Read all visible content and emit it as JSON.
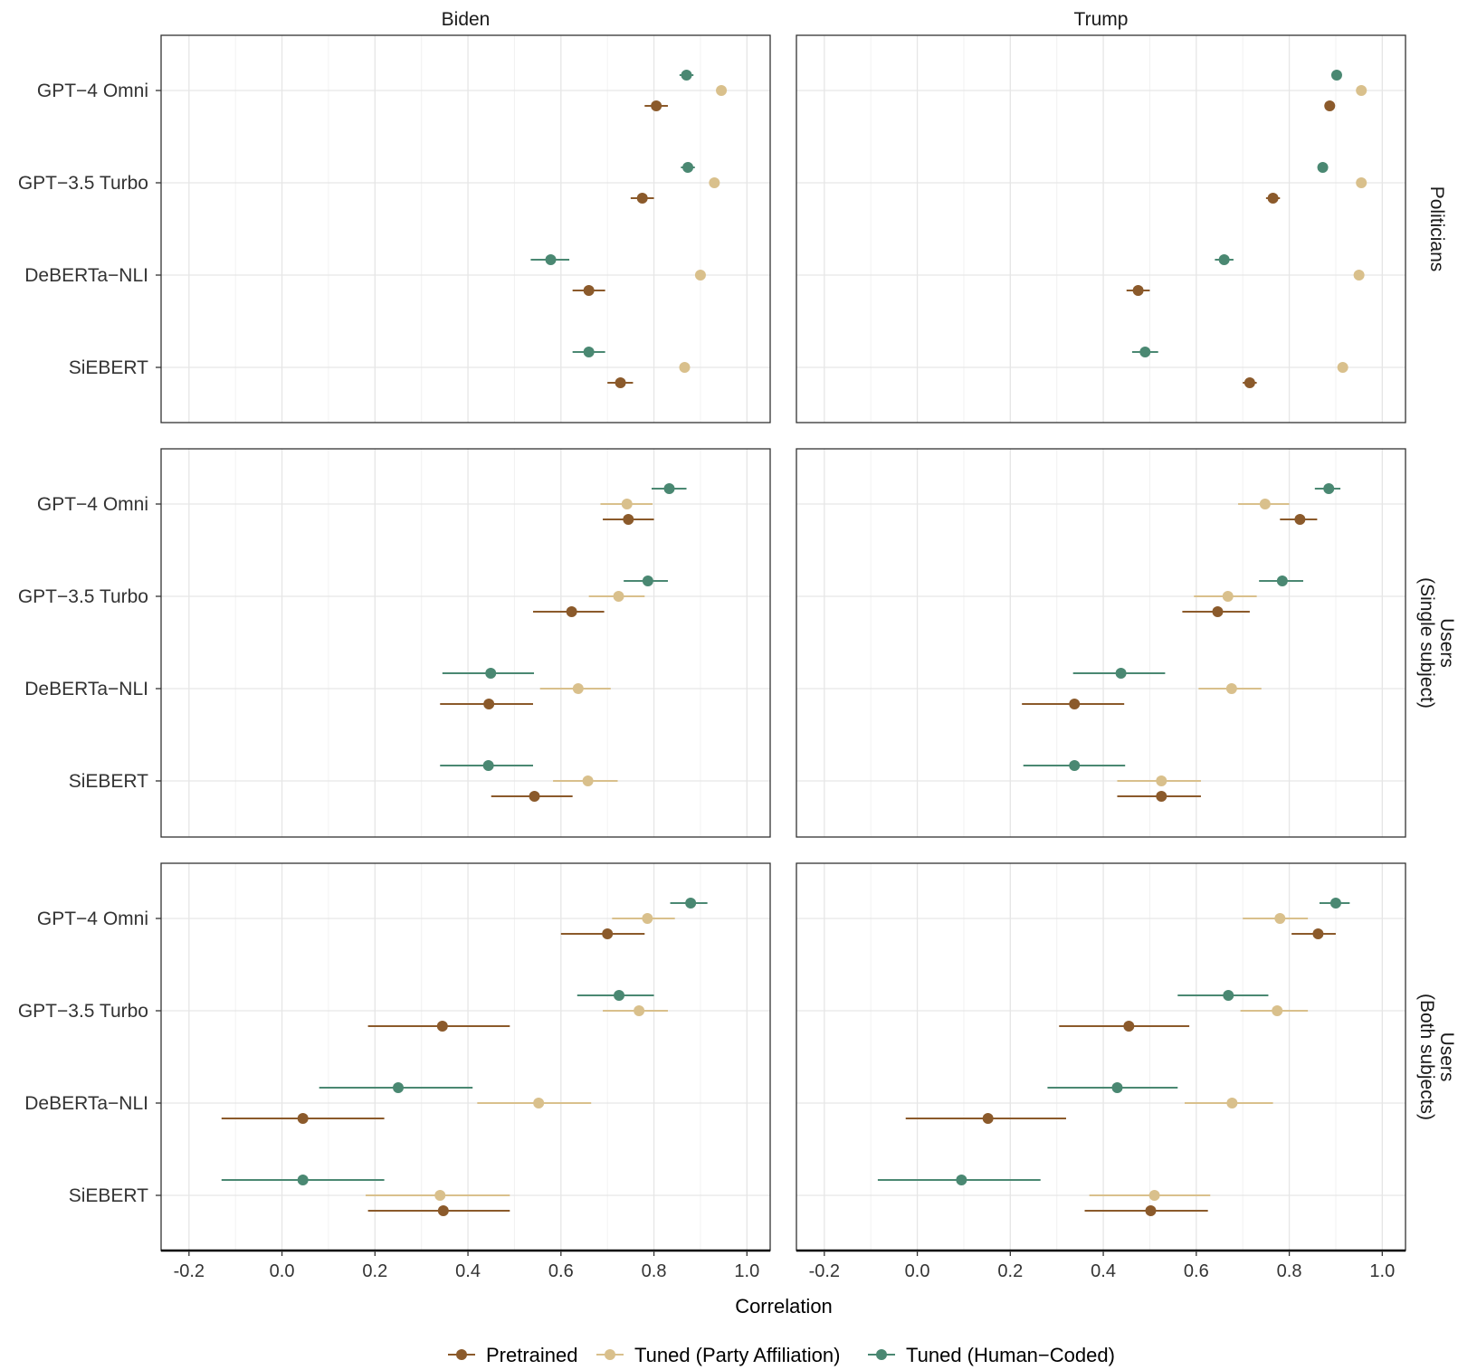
{
  "chart_data": {
    "type": "scatter",
    "subtype": "dot-and-whisker",
    "xlabel": "Correlation",
    "xlim": [
      -0.26,
      1.05
    ],
    "xticks": [
      -0.2,
      0.0,
      0.2,
      0.4,
      0.6,
      0.8,
      1.0
    ],
    "xtick_labels": [
      "-0.2",
      "0.0",
      "0.2",
      "0.4",
      "0.6",
      "0.8",
      "1.0"
    ],
    "columns": [
      "Biden",
      "Trump"
    ],
    "rows": [
      "Politicians",
      "Users\n(Single subject)",
      "Users\n(Both subjects)"
    ],
    "models": [
      "GPT−4 Omni",
      "GPT−3.5 Turbo",
      "DeBERTa−NLI",
      "SiEBERT"
    ],
    "grid": true,
    "legend_position": "bottom",
    "series": [
      {
        "key": "pretrained",
        "name": "Pretrained",
        "color": "#8B5A2B",
        "offset": 1
      },
      {
        "key": "party",
        "name": "Tuned (Party Affiliation)",
        "color": "#D9C08C",
        "offset": 0
      },
      {
        "key": "human",
        "name": "Tuned (Human−Coded)",
        "color": "#4A8872",
        "offset": -1
      }
    ],
    "panels": [
      {
        "column": "Biden",
        "row": "Politicians",
        "points": {
          "GPT−4 Omni": {
            "pretrained": [
              0.805,
              0.78,
              0.83
            ],
            "party": [
              0.945,
              0.935,
              0.955
            ],
            "human": [
              0.87,
              0.855,
              0.885
            ]
          },
          "GPT−3.5 Turbo": {
            "pretrained": [
              0.775,
              0.75,
              0.8
            ],
            "party": [
              0.93,
              0.92,
              0.94
            ],
            "human": [
              0.873,
              0.858,
              0.888
            ]
          },
          "DeBERTa−NLI": {
            "pretrained": [
              0.66,
              0.625,
              0.695
            ],
            "party": [
              0.9,
              0.89,
              0.91
            ],
            "human": [
              0.578,
              0.535,
              0.618
            ]
          },
          "SiEBERT": {
            "pretrained": [
              0.728,
              0.7,
              0.755
            ],
            "party": [
              0.866,
              0.856,
              0.876
            ],
            "human": [
              0.66,
              0.625,
              0.695
            ]
          }
        }
      },
      {
        "column": "Trump",
        "row": "Politicians",
        "points": {
          "GPT−4 Omni": {
            "pretrained": [
              0.887,
              0.88,
              0.894
            ],
            "party": [
              0.955,
              0.948,
              0.962
            ],
            "human": [
              0.902,
              0.895,
              0.909
            ]
          },
          "GPT−3.5 Turbo": {
            "pretrained": [
              0.765,
              0.75,
              0.78
            ],
            "party": [
              0.955,
              0.948,
              0.962
            ],
            "human": [
              0.872,
              0.865,
              0.879
            ]
          },
          "DeBERTa−NLI": {
            "pretrained": [
              0.475,
              0.45,
              0.5
            ],
            "party": [
              0.95,
              0.943,
              0.957
            ],
            "human": [
              0.66,
              0.64,
              0.68
            ]
          },
          "SiEBERT": {
            "pretrained": [
              0.715,
              0.7,
              0.73
            ],
            "party": [
              0.915,
              0.908,
              0.922
            ],
            "human": [
              0.49,
              0.462,
              0.518
            ]
          }
        }
      },
      {
        "column": "Biden",
        "row": "Users (Single subject)",
        "points": {
          "GPT−4 Omni": {
            "pretrained": [
              0.745,
              0.69,
              0.8
            ],
            "party": [
              0.742,
              0.685,
              0.797
            ],
            "human": [
              0.833,
              0.795,
              0.87
            ]
          },
          "GPT−3.5 Turbo": {
            "pretrained": [
              0.623,
              0.54,
              0.693
            ],
            "party": [
              0.724,
              0.66,
              0.78
            ],
            "human": [
              0.787,
              0.735,
              0.83
            ]
          },
          "DeBERTa−NLI": {
            "pretrained": [
              0.445,
              0.34,
              0.54
            ],
            "party": [
              0.637,
              0.555,
              0.707
            ],
            "human": [
              0.449,
              0.345,
              0.542
            ]
          },
          "SiEBERT": {
            "pretrained": [
              0.543,
              0.45,
              0.625
            ],
            "party": [
              0.658,
              0.583,
              0.722
            ],
            "human": [
              0.444,
              0.34,
              0.54
            ]
          }
        }
      },
      {
        "column": "Trump",
        "row": "Users (Single subject)",
        "points": {
          "GPT−4 Omni": {
            "pretrained": [
              0.823,
              0.78,
              0.86
            ],
            "party": [
              0.748,
              0.69,
              0.8
            ],
            "human": [
              0.885,
              0.855,
              0.91
            ]
          },
          "GPT−3.5 Turbo": {
            "pretrained": [
              0.646,
              0.57,
              0.715
            ],
            "party": [
              0.668,
              0.595,
              0.73
            ],
            "human": [
              0.785,
              0.735,
              0.83
            ]
          },
          "DeBERTa−NLI": {
            "pretrained": [
              0.338,
              0.225,
              0.445
            ],
            "party": [
              0.676,
              0.605,
              0.74
            ],
            "human": [
              0.438,
              0.335,
              0.533
            ]
          },
          "SiEBERT": {
            "pretrained": [
              0.525,
              0.43,
              0.61
            ],
            "party": [
              0.525,
              0.43,
              0.61
            ],
            "human": [
              0.338,
              0.228,
              0.447
            ]
          }
        }
      },
      {
        "column": "Biden",
        "row": "Users (Both subjects)",
        "points": {
          "GPT−4 Omni": {
            "pretrained": [
              0.7,
              0.6,
              0.78
            ],
            "party": [
              0.786,
              0.71,
              0.845
            ],
            "human": [
              0.879,
              0.835,
              0.915
            ]
          },
          "GPT−3.5 Turbo": {
            "pretrained": [
              0.345,
              0.185,
              0.49
            ],
            "party": [
              0.768,
              0.69,
              0.83
            ],
            "human": [
              0.725,
              0.635,
              0.8
            ]
          },
          "DeBERTa−NLI": {
            "pretrained": [
              0.045,
              -0.13,
              0.22
            ],
            "party": [
              0.552,
              0.42,
              0.665
            ],
            "human": [
              0.25,
              0.08,
              0.41
            ]
          },
          "SiEBERT": {
            "pretrained": [
              0.347,
              0.185,
              0.49
            ],
            "party": [
              0.34,
              0.18,
              0.49
            ],
            "human": [
              0.045,
              -0.13,
              0.22
            ]
          }
        }
      },
      {
        "column": "Trump",
        "row": "Users (Both subjects)",
        "points": {
          "GPT−4 Omni": {
            "pretrained": [
              0.862,
              0.805,
              0.9
            ],
            "party": [
              0.78,
              0.7,
              0.84
            ],
            "human": [
              0.9,
              0.865,
              0.93
            ]
          },
          "GPT−3.5 Turbo": {
            "pretrained": [
              0.455,
              0.305,
              0.585
            ],
            "party": [
              0.774,
              0.695,
              0.84
            ],
            "human": [
              0.669,
              0.56,
              0.755
            ]
          },
          "DeBERTa−NLI": {
            "pretrained": [
              0.152,
              -0.025,
              0.32
            ],
            "party": [
              0.677,
              0.575,
              0.765
            ],
            "human": [
              0.43,
              0.28,
              0.56
            ]
          },
          "SiEBERT": {
            "pretrained": [
              0.502,
              0.36,
              0.625
            ],
            "party": [
              0.51,
              0.37,
              0.63
            ],
            "human": [
              0.095,
              -0.085,
              0.265
            ]
          }
        }
      }
    ]
  }
}
